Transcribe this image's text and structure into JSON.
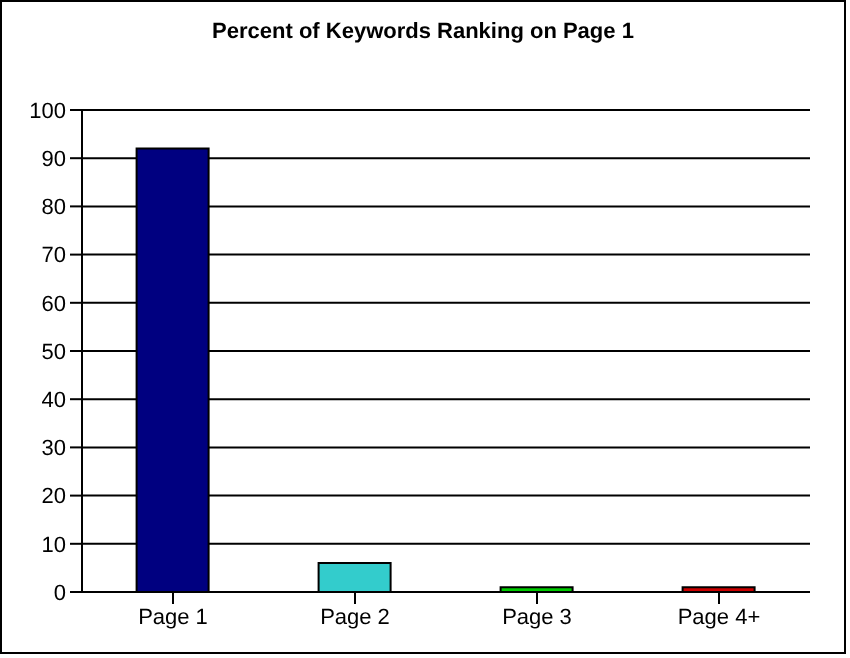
{
  "chart_data": {
    "type": "bar",
    "title": "Percent of Keywords Ranking on Page 1",
    "categories": [
      "Page 1",
      "Page 2",
      "Page 3",
      "Page 4+"
    ],
    "values": [
      92,
      6,
      1,
      1
    ],
    "colors": [
      "#000080",
      "#33cccc",
      "#00cc00",
      "#cc0000"
    ],
    "ylim": [
      0,
      100
    ],
    "yticks": [
      0,
      10,
      20,
      30,
      40,
      50,
      60,
      70,
      80,
      90,
      100
    ],
    "grid": "y"
  }
}
